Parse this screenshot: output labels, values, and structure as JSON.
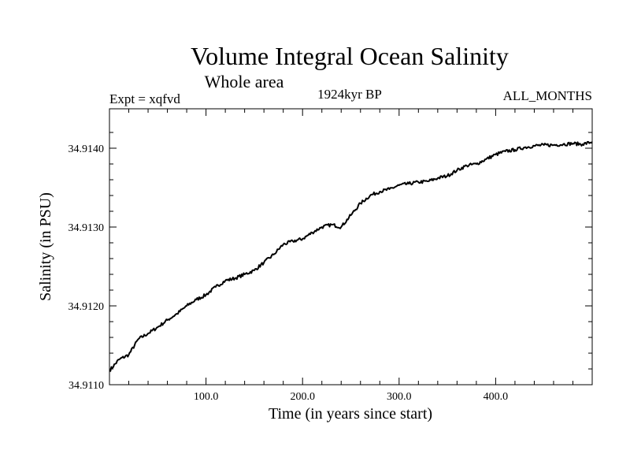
{
  "chart_data": {
    "type": "line",
    "title": "Volume Integral Ocean Salinity",
    "subtitle": "Whole area",
    "left_label": "Expt = xqfvd",
    "center_label": "1924kyr BP",
    "right_label": "ALL_MONTHS",
    "xlabel": "Time (in years since start)",
    "ylabel": "Salinity (in PSU)",
    "xlim": [
      0,
      500
    ],
    "ylim": [
      34.911,
      34.9145
    ],
    "xticks": [
      {
        "value": 100,
        "label": "100.0"
      },
      {
        "value": 200,
        "label": "200.0"
      },
      {
        "value": 300,
        "label": "300.0"
      },
      {
        "value": 400,
        "label": "400.0"
      }
    ],
    "yticks": [
      {
        "value": 34.911,
        "label": "34.9110"
      },
      {
        "value": 34.912,
        "label": "34.9120"
      },
      {
        "value": 34.913,
        "label": "34.9130"
      },
      {
        "value": 34.914,
        "label": "34.9140"
      }
    ],
    "series": [
      {
        "name": "salinity",
        "x": [
          0,
          10,
          20,
          30,
          40,
          50,
          60,
          70,
          80,
          90,
          100,
          110,
          120,
          130,
          140,
          150,
          160,
          170,
          180,
          190,
          200,
          210,
          220,
          230,
          240,
          250,
          260,
          270,
          280,
          290,
          300,
          310,
          320,
          330,
          340,
          350,
          360,
          370,
          380,
          390,
          400,
          410,
          420,
          430,
          440,
          450,
          460,
          470,
          480,
          490,
          500
        ],
        "values": [
          34.91118,
          34.91132,
          34.91138,
          34.91158,
          34.91165,
          34.91173,
          34.91182,
          34.9119,
          34.912,
          34.91208,
          34.91214,
          34.91224,
          34.91232,
          34.91235,
          34.9124,
          34.91245,
          34.91255,
          34.91265,
          34.91278,
          34.91282,
          34.91285,
          34.91293,
          34.913,
          34.91303,
          34.913,
          34.91315,
          34.9133,
          34.9134,
          34.91345,
          34.91348,
          34.91353,
          34.91355,
          34.91357,
          34.91358,
          34.91362,
          34.91365,
          34.91372,
          34.91378,
          34.9138,
          34.91386,
          34.91392,
          34.91396,
          34.91398,
          34.91401,
          34.91403,
          34.91404,
          34.91404,
          34.91405,
          34.91406,
          34.91405,
          34.91408
        ]
      }
    ]
  }
}
